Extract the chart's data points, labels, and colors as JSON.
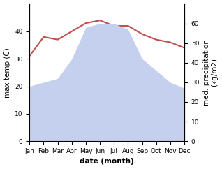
{
  "months": [
    "Jan",
    "Feb",
    "Mar",
    "Apr",
    "May",
    "Jun",
    "Jul",
    "Aug",
    "Sep",
    "Oct",
    "Nov",
    "Dec"
  ],
  "max_temp": [
    31,
    38,
    37,
    40,
    43,
    44,
    42,
    42,
    39,
    37,
    36,
    34
  ],
  "precipitation": [
    28,
    30,
    32,
    42,
    58,
    60,
    60,
    57,
    42,
    36,
    30,
    27
  ],
  "temp_color": "#c0504d",
  "precip_fill_color": "#c5d0ee",
  "ylabel_left": "max temp (C)",
  "ylabel_right": "med. precipitation\n(kg/m2)",
  "xlabel": "date (month)",
  "ylim_left": [
    0,
    50
  ],
  "ylim_right": [
    0,
    70
  ],
  "yticks_left": [
    0,
    10,
    20,
    30,
    40
  ],
  "yticks_right": [
    0,
    10,
    20,
    30,
    40,
    50,
    60
  ],
  "background_color": "#ffffff",
  "label_fontsize": 7.5,
  "tick_fontsize": 6.5
}
